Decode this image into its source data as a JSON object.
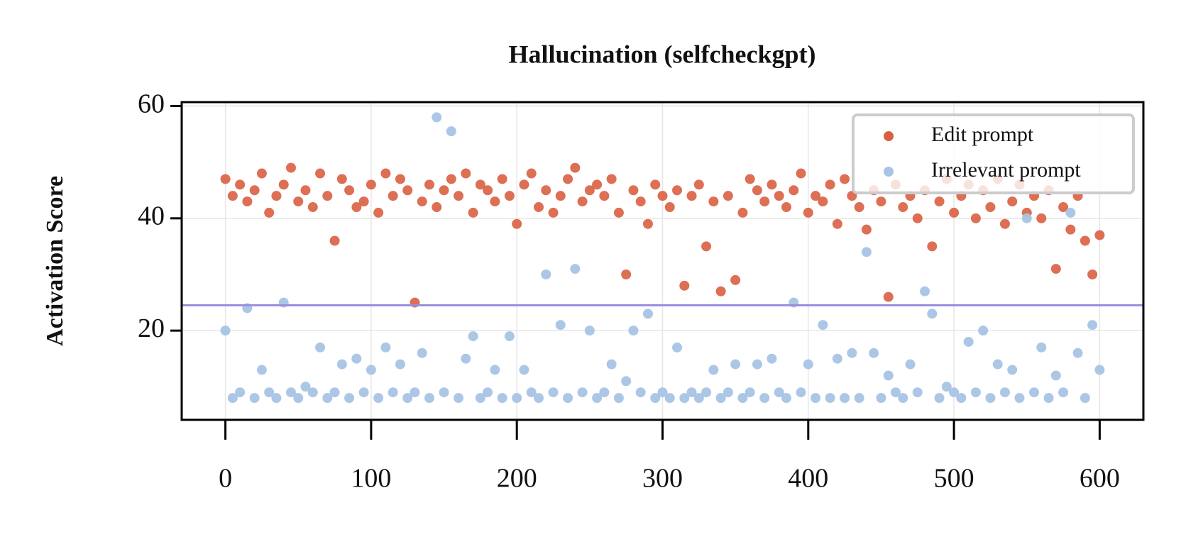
{
  "chart_data": {
    "type": "scatter",
    "title": "Hallucination (selfcheckgpt)",
    "y_label": "Activation Score",
    "x": [
      0,
      5,
      10,
      15,
      20,
      25,
      30,
      35,
      40,
      45,
      50,
      55,
      60,
      65,
      70,
      75,
      80,
      85,
      90,
      95,
      100,
      105,
      110,
      115,
      120,
      125,
      130,
      135,
      140,
      145,
      150,
      155,
      160,
      165,
      170,
      175,
      180,
      185,
      190,
      195,
      200,
      205,
      210,
      215,
      220,
      225,
      230,
      235,
      240,
      245,
      250,
      255,
      260,
      265,
      270,
      275,
      280,
      285,
      290,
      295,
      300,
      305,
      310,
      315,
      320,
      325,
      330,
      335,
      340,
      345,
      350,
      355,
      360,
      365,
      370,
      375,
      380,
      385,
      390,
      395,
      400,
      405,
      410,
      415,
      420,
      425,
      430,
      435,
      440,
      445,
      450,
      455,
      460,
      465,
      470,
      475,
      480,
      485,
      490,
      495,
      500,
      505,
      510,
      515,
      520,
      525,
      530,
      535,
      540,
      545,
      550,
      555,
      560,
      565,
      570,
      575,
      580,
      585,
      590,
      595,
      600
    ],
    "series": [
      {
        "name": "Edit prompt",
        "color": "#d95f43",
        "values": [
          47,
          44,
          46,
          43,
          45,
          48,
          41,
          44,
          46,
          49,
          43,
          45,
          42,
          48,
          44,
          36,
          47,
          45,
          42,
          43,
          46,
          41,
          48,
          44,
          47,
          45,
          25,
          43,
          46,
          42,
          45,
          47,
          44,
          48,
          41,
          46,
          45,
          43,
          47,
          44,
          39,
          46,
          48,
          42,
          45,
          41,
          44,
          47,
          49,
          43,
          45,
          46,
          44,
          47,
          41,
          30,
          45,
          43,
          39,
          46,
          44,
          42,
          45,
          28,
          44,
          46,
          35,
          43,
          27,
          44,
          29,
          41,
          47,
          45,
          43,
          46,
          44,
          42,
          45,
          48,
          41,
          44,
          43,
          46,
          39,
          47,
          44,
          42,
          38,
          45,
          43,
          26,
          46,
          42,
          44,
          40,
          45,
          35,
          43,
          47,
          41,
          44,
          46,
          40,
          45,
          42,
          47,
          39,
          43,
          46,
          41,
          44,
          40,
          45,
          31,
          42,
          38,
          44,
          36,
          30,
          37
        ]
      },
      {
        "name": "Irrelevant prompt",
        "color": "#a8c4e5",
        "values": [
          20,
          8,
          9,
          24,
          8,
          13,
          9,
          8,
          25,
          9,
          8,
          10,
          9,
          17,
          8,
          9,
          14,
          8,
          15,
          9,
          13,
          8,
          17,
          9,
          14,
          8,
          9,
          16,
          8,
          58,
          9,
          55.5,
          8,
          15,
          19,
          8,
          9,
          13,
          8,
          19,
          8,
          13,
          9,
          8,
          30,
          9,
          21,
          8,
          31,
          9,
          20,
          8,
          9,
          14,
          8,
          11,
          20,
          9,
          23,
          8,
          9,
          8,
          17,
          8,
          9,
          8,
          9,
          13,
          8,
          9,
          14,
          8,
          9,
          14,
          8,
          15,
          9,
          8,
          25,
          9,
          14,
          8,
          21,
          8,
          15,
          8,
          16,
          8,
          34,
          16,
          8,
          12,
          9,
          8,
          14,
          9,
          27,
          23,
          8,
          10,
          9,
          8,
          18,
          9,
          20,
          8,
          14,
          9,
          13,
          8,
          40,
          9,
          17,
          8,
          12,
          9,
          41,
          16,
          8,
          21,
          13
        ]
      }
    ],
    "hline": {
      "value": 24.5,
      "color": "#9b8fdd"
    },
    "xlim": [
      -30,
      630
    ],
    "ylim": [
      4.1,
      60.7
    ],
    "xticks": [
      0,
      100,
      200,
      300,
      400,
      500,
      600
    ],
    "yticks": [
      20,
      40,
      60
    ],
    "grid": true,
    "legend": "upper right"
  }
}
